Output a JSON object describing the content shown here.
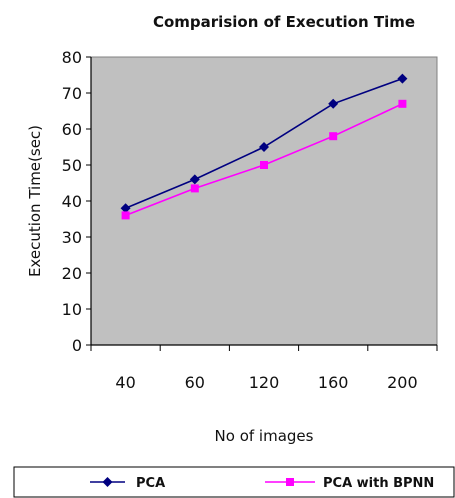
{
  "chart_data": {
    "type": "line",
    "title": "Comparision of Execution Time",
    "xlabel": "No of images",
    "ylabel": "Execution Time(sec)",
    "categories": [
      "40",
      "60",
      "120",
      "160",
      "200"
    ],
    "ylim": [
      0,
      80
    ],
    "yticks": [
      "0",
      "10",
      "20",
      "30",
      "40",
      "50",
      "60",
      "70",
      "80"
    ],
    "grid": false,
    "plot_background": "#c0c0c0",
    "legend_position": "bottom",
    "series": [
      {
        "name": "PCA",
        "values": [
          38,
          46,
          55,
          67,
          74
        ],
        "color": "#000080",
        "marker": "diamond"
      },
      {
        "name": "PCA with BPNN",
        "values": [
          36,
          43.5,
          50,
          58,
          67
        ],
        "color": "#ff00ff",
        "marker": "square"
      }
    ]
  }
}
